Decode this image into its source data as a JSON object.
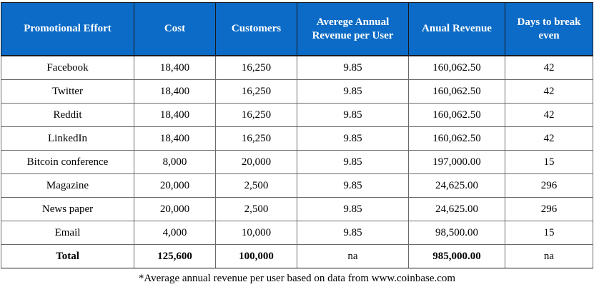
{
  "table": {
    "headers": [
      "Promotional Effort",
      "Cost",
      "Customers",
      "Averege Annual Revenue per User",
      "Anual Revenue",
      "Days to break even"
    ],
    "rows": [
      [
        "Facebook",
        "18,400",
        "16,250",
        "9.85",
        "160,062.50",
        "42"
      ],
      [
        "Twitter",
        "18,400",
        "16,250",
        "9.85",
        "160,062.50",
        "42"
      ],
      [
        "Reddit",
        "18,400",
        "16,250",
        "9.85",
        "160,062.50",
        "42"
      ],
      [
        "LinkedIn",
        "18,400",
        "16,250",
        "9.85",
        "160,062.50",
        "42"
      ],
      [
        "Bitcoin conference",
        "8,000",
        "20,000",
        "9.85",
        "197,000.00",
        "15"
      ],
      [
        "Magazine",
        "20,000",
        "2,500",
        "9.85",
        "24,625.00",
        "296"
      ],
      [
        "News paper",
        "20,000",
        "2,500",
        "9.85",
        "24,625.00",
        "296"
      ],
      [
        "Email",
        "4,000",
        "10,000",
        "9.85",
        "98,500.00",
        "15"
      ]
    ],
    "total": [
      "Total",
      "125,600",
      "100,000",
      "na",
      "985,000.00",
      "na"
    ]
  },
  "footnote": "*Average annual revenue per user based on data from www.coinbase.com",
  "colors": {
    "header_background": "#0b6bc6",
    "header_text": "#ffffff"
  }
}
